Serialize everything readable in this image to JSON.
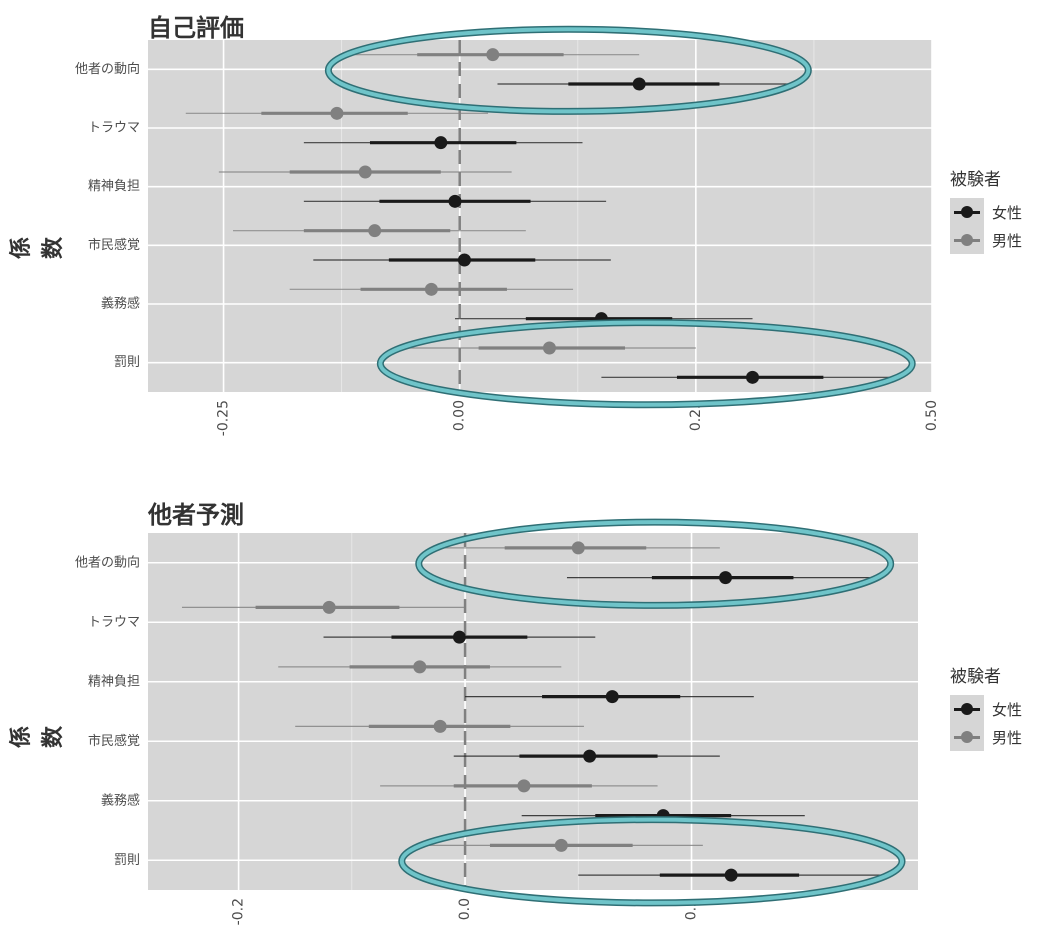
{
  "chart_data": [
    {
      "type": "scatter",
      "subtype": "coefficient-plot",
      "title": "自己評価",
      "ylabel": "係数",
      "xlabel": "",
      "categories": [
        "他者の動向",
        "トラウマ",
        "精神負担",
        "市民感覚",
        "義務感",
        "罰則"
      ],
      "xlim": [
        -0.33,
        0.5
      ],
      "xticks": [
        -0.25,
        0.0,
        0.25,
        0.5
      ],
      "xtick_labels": [
        "-0.25",
        "0.00",
        "0.25",
        "0.50"
      ],
      "grid": true,
      "legend_title": "被験者",
      "legend_position": "right",
      "series": [
        {
          "name": "女性",
          "color": "#1a1a1a",
          "estimate": [
            0.19,
            -0.02,
            -0.005,
            0.005,
            0.15,
            0.31
          ],
          "ci_inner": [
            [
              0.115,
              0.275
            ],
            [
              -0.095,
              0.06
            ],
            [
              -0.085,
              0.075
            ],
            [
              -0.075,
              0.08
            ],
            [
              0.07,
              0.225
            ],
            [
              0.23,
              0.385
            ]
          ],
          "ci_outer": [
            [
              0.04,
              0.35
            ],
            [
              -0.165,
              0.13
            ],
            [
              -0.165,
              0.155
            ],
            [
              -0.155,
              0.16
            ],
            [
              -0.005,
              0.31
            ],
            [
              0.15,
              0.46
            ]
          ]
        },
        {
          "name": "男性",
          "color": "#808080",
          "estimate": [
            0.035,
            -0.13,
            -0.1,
            -0.09,
            -0.03,
            0.095
          ],
          "ci_inner": [
            [
              -0.045,
              0.11
            ],
            [
              -0.21,
              -0.055
            ],
            [
              -0.18,
              -0.02
            ],
            [
              -0.165,
              -0.01
            ],
            [
              -0.105,
              0.05
            ],
            [
              0.02,
              0.175
            ]
          ],
          "ci_outer": [
            [
              -0.12,
              0.19
            ],
            [
              -0.29,
              0.03
            ],
            [
              -0.255,
              0.055
            ],
            [
              -0.24,
              0.07
            ],
            [
              -0.18,
              0.12
            ],
            [
              -0.065,
              0.25
            ]
          ]
        }
      ],
      "highlighted_categories": [
        "他者の動向",
        "罰則"
      ]
    },
    {
      "type": "scatter",
      "subtype": "coefficient-plot",
      "title": "他者予測",
      "ylabel": "係数",
      "xlabel": "",
      "categories": [
        "他者の動向",
        "トラウマ",
        "精神負担",
        "市民感覚",
        "義務感",
        "罰則"
      ],
      "xlim": [
        -0.28,
        0.4
      ],
      "xticks": [
        -0.2,
        0.0,
        0.2
      ],
      "xtick_labels": [
        "-0.2",
        "0.0",
        "0.2"
      ],
      "grid": true,
      "legend_title": "被験者",
      "legend_position": "right",
      "series": [
        {
          "name": "女性",
          "color": "#1a1a1a",
          "estimate": [
            0.23,
            -0.005,
            0.13,
            0.11,
            0.175,
            0.235
          ],
          "ci_inner": [
            [
              0.165,
              0.29
            ],
            [
              -0.065,
              0.055
            ],
            [
              0.068,
              0.19
            ],
            [
              0.048,
              0.17
            ],
            [
              0.115,
              0.235
            ],
            [
              0.172,
              0.295
            ]
          ],
          "ci_outer": [
            [
              0.09,
              0.36
            ],
            [
              -0.125,
              0.115
            ],
            [
              0.0,
              0.255
            ],
            [
              -0.01,
              0.225
            ],
            [
              0.05,
              0.3
            ],
            [
              0.1,
              0.37
            ]
          ]
        },
        {
          "name": "男性",
          "color": "#808080",
          "estimate": [
            0.1,
            -0.12,
            -0.04,
            -0.022,
            0.052,
            0.085
          ],
          "ci_inner": [
            [
              0.035,
              0.16
            ],
            [
              -0.185,
              -0.058
            ],
            [
              -0.102,
              0.022
            ],
            [
              -0.085,
              0.04
            ],
            [
              -0.01,
              0.112
            ],
            [
              0.022,
              0.148
            ]
          ],
          "ci_outer": [
            [
              -0.025,
              0.225
            ],
            [
              -0.25,
              0.0
            ],
            [
              -0.165,
              0.085
            ],
            [
              -0.15,
              0.105
            ],
            [
              -0.075,
              0.17
            ],
            [
              -0.04,
              0.21
            ]
          ]
        }
      ],
      "highlighted_categories": [
        "他者の動向",
        "罰則"
      ]
    }
  ],
  "colors": {
    "panel_bg": "#d6d6d6",
    "grid": "#ffffff",
    "highlight_ring": "#6fc4c9",
    "highlight_ring_edge": "#2f6f75",
    "zero_line": "#808080"
  }
}
